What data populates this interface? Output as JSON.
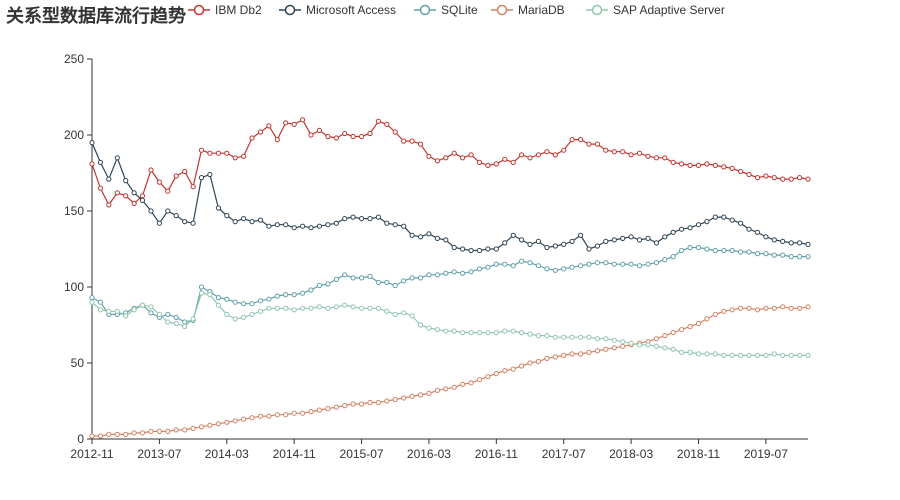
{
  "chart_data": {
    "type": "line",
    "title": "关系型数据库流行趋势",
    "xlabel": "",
    "ylabel": "",
    "ylim": [
      0,
      250
    ],
    "yticks": [
      0,
      50,
      100,
      150,
      200,
      250
    ],
    "legend_position": "top",
    "grid": false,
    "x_start": "2012-11",
    "x_end": "2020-01",
    "x_tick_labels": [
      "2012-11",
      "2013-07",
      "2014-03",
      "2014-11",
      "2015-07",
      "2016-03",
      "2016-11",
      "2017-07",
      "2018-03",
      "2018-11",
      "2019-07"
    ],
    "series": [
      {
        "name": "IBM Db2",
        "color": "#c23531",
        "values": [
          181,
          165,
          154,
          162,
          160,
          155,
          160,
          177,
          169,
          163,
          173,
          176,
          166,
          190,
          188,
          188,
          188,
          185,
          186,
          198,
          202,
          206,
          197,
          208,
          207,
          210,
          200,
          203,
          199,
          198,
          201,
          199,
          199,
          201,
          209,
          207,
          202,
          196,
          196,
          194,
          186,
          183,
          185,
          188,
          185,
          187,
          182,
          180,
          181,
          184,
          182,
          187,
          185,
          187,
          189,
          187,
          190,
          197,
          197,
          194,
          194,
          190,
          189,
          189,
          187,
          188,
          186,
          185,
          185,
          182,
          181,
          180,
          180,
          181,
          180,
          179,
          178,
          176,
          174,
          172,
          173,
          172,
          171,
          171,
          172,
          171
        ],
        "value_source": "estimated"
      },
      {
        "name": "Microsoft Access",
        "color": "#2f4554",
        "values": [
          195,
          182,
          171,
          185,
          170,
          162,
          157,
          150,
          142,
          150,
          147,
          143,
          142,
          172,
          174,
          152,
          147,
          143,
          145,
          143,
          144,
          140,
          141,
          141,
          139,
          140,
          139,
          140,
          141,
          142,
          145,
          146,
          145,
          145,
          146,
          142,
          141,
          140,
          134,
          133,
          135,
          132,
          131,
          126,
          125,
          124,
          124,
          125,
          125,
          129,
          134,
          131,
          128,
          130,
          126,
          127,
          128,
          130,
          134,
          125,
          127,
          130,
          131,
          132,
          133,
          131,
          132,
          129,
          133,
          136,
          138,
          139,
          141,
          143,
          146,
          146,
          144,
          142,
          138,
          136,
          133,
          131,
          130,
          129,
          129,
          128
        ],
        "value_source": "estimated"
      },
      {
        "name": "SQLite",
        "color": "#61a0a8",
        "values": [
          93,
          90,
          82,
          82,
          83,
          86,
          88,
          83,
          80,
          82,
          80,
          77,
          78,
          100,
          97,
          93,
          92,
          90,
          89,
          89,
          91,
          92,
          94,
          95,
          95,
          96,
          98,
          101,
          102,
          105,
          108,
          106,
          106,
          107,
          103,
          103,
          101,
          104,
          106,
          106,
          108,
          108,
          109,
          110,
          109,
          110,
          112,
          113,
          115,
          115,
          114,
          117,
          116,
          114,
          112,
          111,
          112,
          113,
          114,
          115,
          116,
          116,
          115,
          115,
          115,
          114,
          115,
          116,
          118,
          120,
          124,
          126,
          126,
          125,
          124,
          124,
          124,
          123,
          123,
          122,
          122,
          121,
          121,
          120,
          120,
          120
        ],
        "value_source": "estimated"
      },
      {
        "name": "MariaDB",
        "color": "#d48265",
        "values": [
          2,
          2,
          3,
          3,
          3,
          4,
          4,
          5,
          5,
          5,
          6,
          6,
          7,
          8,
          9,
          10,
          11,
          12,
          13,
          14,
          15,
          15,
          16,
          16,
          17,
          17,
          18,
          19,
          20,
          21,
          22,
          23,
          23,
          24,
          24,
          25,
          26,
          27,
          28,
          29,
          30,
          32,
          33,
          34,
          36,
          37,
          39,
          41,
          43,
          45,
          46,
          48,
          50,
          51,
          53,
          54,
          55,
          56,
          56,
          57,
          58,
          59,
          60,
          61,
          62,
          63,
          64,
          66,
          68,
          70,
          72,
          74,
          76,
          79,
          82,
          84,
          85,
          86,
          86,
          85,
          86,
          86,
          87,
          86,
          86,
          87
        ],
        "value_source": "estimated"
      },
      {
        "name": "SAP Adaptive Server",
        "color": "#91c7ae",
        "values": [
          90,
          85,
          84,
          84,
          81,
          85,
          88,
          87,
          82,
          77,
          76,
          74,
          79,
          96,
          95,
          88,
          82,
          79,
          80,
          82,
          84,
          86,
          86,
          86,
          85,
          86,
          86,
          87,
          86,
          87,
          88,
          87,
          86,
          86,
          86,
          84,
          82,
          83,
          81,
          75,
          73,
          72,
          71,
          71,
          70,
          70,
          70,
          70,
          70,
          71,
          71,
          70,
          69,
          68,
          68,
          67,
          67,
          67,
          67,
          67,
          66,
          66,
          65,
          64,
          63,
          62,
          62,
          61,
          60,
          59,
          57,
          57,
          56,
          56,
          56,
          55,
          55,
          55,
          55,
          55,
          55,
          56,
          55,
          55,
          55,
          55
        ],
        "value_source": "estimated"
      }
    ]
  }
}
